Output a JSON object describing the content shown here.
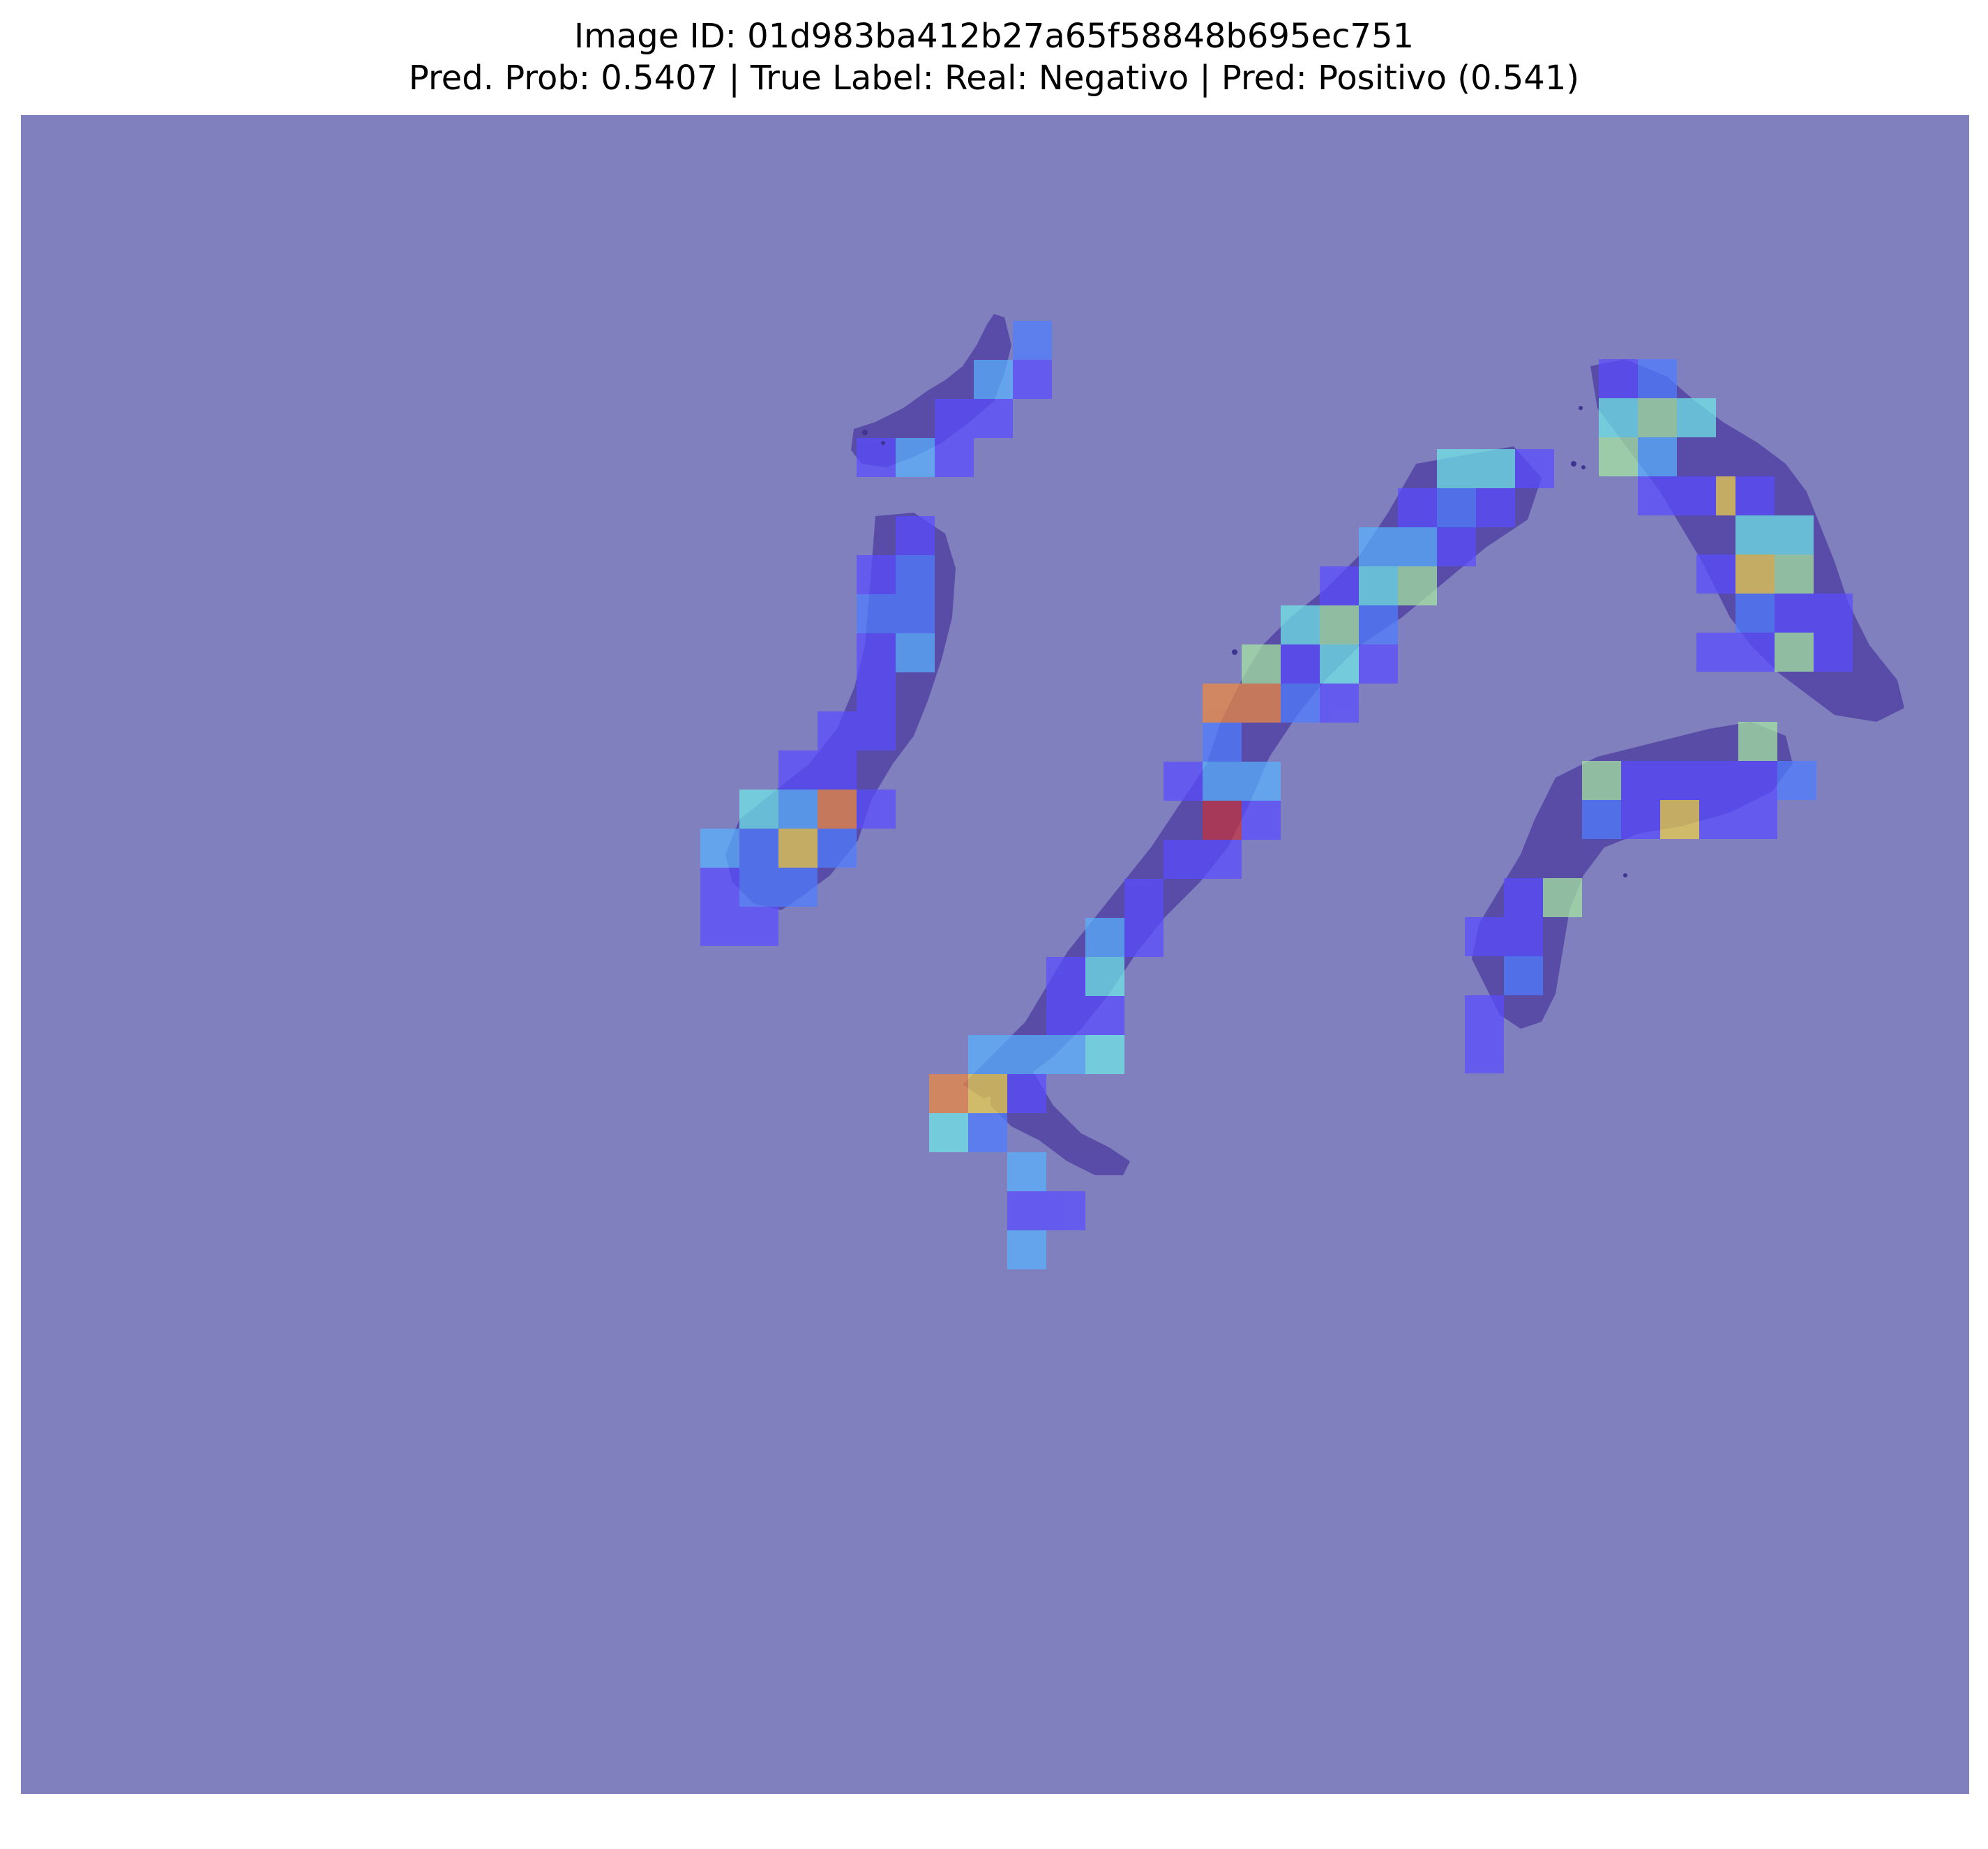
{
  "title": {
    "line1": "Image ID: 01d983ba412b27a65f58848b695ec751",
    "line2": "Pred. Prob: 0.5407 | True Label: Real: Negativo | Pred: Positivo (0.541)"
  },
  "colors": {
    "background_overlay": "#8080bf",
    "tissue": "#5548a6",
    "tissue_dark": "#3f3590",
    "tile_low": "#5a4cff",
    "tile_blue": "#4f7dff",
    "tile_lightblue": "#59b2ff",
    "tile_cyan": "#6fe8e8",
    "tile_green": "#a6e8a0",
    "tile_yellow": "#f0d24a",
    "tile_orange": "#f08a3e",
    "tile_red": "#c4323c"
  }
}
